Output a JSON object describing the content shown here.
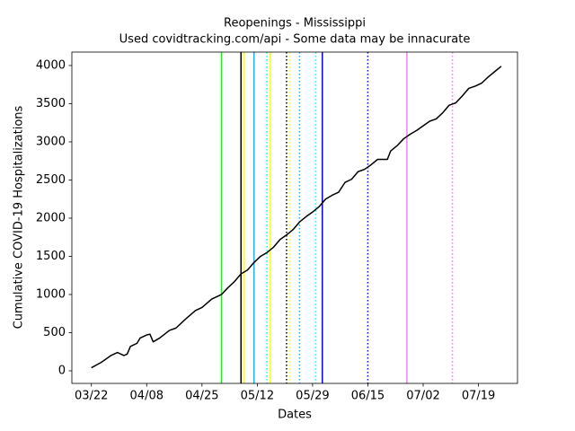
{
  "chart_data": {
    "type": "line",
    "title": "Reopenings - Mississippi",
    "subtitle": "Used covidtracking.com/api - Some data may be innacurate",
    "x_label": "Dates",
    "y_label": "Cumulative COVID-19 Hospitalizations",
    "color": "#000000",
    "x": [
      "03/22",
      "03/25",
      "03/28",
      "03/30",
      "04/01",
      "04/02",
      "04/03",
      "04/05",
      "04/06",
      "04/08",
      "04/09",
      "04/10",
      "04/12",
      "04/15",
      "04/17",
      "04/20",
      "04/23",
      "04/25",
      "04/28",
      "05/01",
      "05/03",
      "05/05",
      "05/07",
      "05/09",
      "05/11",
      "05/13",
      "05/15",
      "05/17",
      "05/19",
      "05/21",
      "05/23",
      "05/25",
      "05/27",
      "05/29",
      "05/31",
      "06/02",
      "06/04",
      "06/06",
      "06/08",
      "06/10",
      "06/12",
      "06/14",
      "06/16",
      "06/18",
      "06/21",
      "06/22",
      "06/24",
      "06/26",
      "06/28",
      "06/30",
      "07/02",
      "07/04",
      "07/06",
      "07/08",
      "07/10",
      "07/12",
      "07/14",
      "07/16",
      "07/18",
      "07/20",
      "07/22",
      "07/24",
      "07/26"
    ],
    "values": [
      40,
      110,
      200,
      240,
      200,
      220,
      320,
      360,
      430,
      470,
      480,
      380,
      430,
      530,
      560,
      680,
      790,
      830,
      940,
      1000,
      1090,
      1170,
      1270,
      1320,
      1420,
      1500,
      1550,
      1620,
      1720,
      1780,
      1850,
      1950,
      2020,
      2080,
      2150,
      2250,
      2300,
      2340,
      2470,
      2510,
      2610,
      2640,
      2700,
      2770,
      2770,
      2880,
      2950,
      3040,
      3100,
      3150,
      3210,
      3270,
      3300,
      3380,
      3480,
      3510,
      3600,
      3700,
      3730,
      3770,
      3850,
      3920,
      3990
    ],
    "vlines": [
      {
        "x": "05/01",
        "color": "#00ff00",
        "style": "solid"
      },
      {
        "x": "05/07",
        "color": "#000000",
        "style": "solid"
      },
      {
        "x": "05/08",
        "color": "#ffff00",
        "style": "solid"
      },
      {
        "x": "05/11",
        "color": "#00bfff",
        "style": "solid"
      },
      {
        "x": "05/15",
        "color": "#00ffff",
        "style": "dotted"
      },
      {
        "x": "05/16",
        "color": "#ffff00",
        "style": "solid"
      },
      {
        "x": "05/21",
        "color": "#000000",
        "style": "dotted"
      },
      {
        "x": "05/22",
        "color": "#ffff00",
        "style": "dotted"
      },
      {
        "x": "05/25",
        "color": "#00bfff",
        "style": "dotted"
      },
      {
        "x": "05/30",
        "color": "#00ffff",
        "style": "dotted"
      },
      {
        "x": "06/01",
        "color": "#0000ff",
        "style": "solid"
      },
      {
        "x": "06/15",
        "color": "#0000ff",
        "style": "dotted"
      },
      {
        "x": "06/27",
        "color": "#ee82ee",
        "style": "solid"
      },
      {
        "x": "07/11",
        "color": "#ee82ee",
        "style": "dotted"
      }
    ],
    "xlim": [
      "03/16",
      "07/31"
    ],
    "xticks": [
      "03/22",
      "04/08",
      "04/25",
      "05/12",
      "05/29",
      "06/15",
      "07/02",
      "07/19"
    ],
    "ylim": [
      -165,
      4176
    ],
    "yticks": [
      0,
      500,
      1000,
      1500,
      2000,
      2500,
      3000,
      3500,
      4000
    ]
  }
}
